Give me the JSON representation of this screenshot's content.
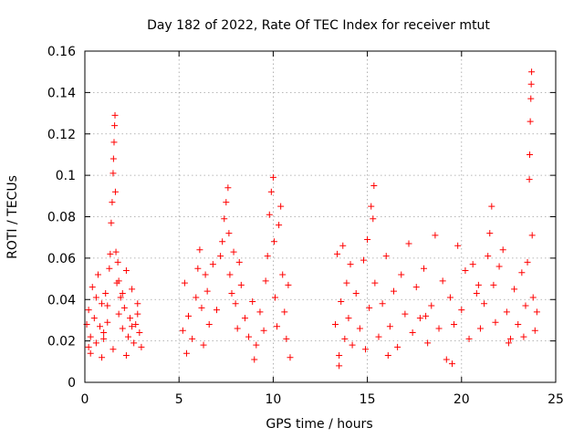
{
  "chart_data": {
    "type": "scatter",
    "title": "Day 182 of 2022, Rate Of TEC Index for receiver mtut",
    "xlabel": "GPS time / hours",
    "ylabel": "ROTI / TECUs",
    "xlim": [
      0,
      25
    ],
    "ylim": [
      0,
      0.16
    ],
    "x_ticks": [
      "0",
      "5",
      "10",
      "15",
      "20",
      "25"
    ],
    "y_ticks": [
      "0",
      "0.02",
      "0.04",
      "0.06",
      "0.08",
      "0.1",
      "0.12",
      "0.14",
      "0.16"
    ],
    "grid": true,
    "marker": "plus",
    "color": "#ff0000",
    "series": [
      {
        "points": [
          [
            0.1,
            0.028
          ],
          [
            0.2,
            0.035
          ],
          [
            0.3,
            0.022
          ],
          [
            0.4,
            0.046
          ],
          [
            0.5,
            0.031
          ],
          [
            0.6,
            0.019
          ],
          [
            0.7,
            0.052
          ],
          [
            0.8,
            0.027
          ],
          [
            0.9,
            0.038
          ],
          [
            1.0,
            0.024
          ],
          [
            1.1,
            0.043
          ],
          [
            1.2,
            0.029
          ],
          [
            1.3,
            0.055
          ],
          [
            1.35,
            0.062
          ],
          [
            1.4,
            0.077
          ],
          [
            1.45,
            0.087
          ],
          [
            1.5,
            0.101
          ],
          [
            1.52,
            0.108
          ],
          [
            1.55,
            0.116
          ],
          [
            1.58,
            0.124
          ],
          [
            1.6,
            0.129
          ],
          [
            1.62,
            0.092
          ],
          [
            1.65,
            0.063
          ],
          [
            1.7,
            0.048
          ],
          [
            1.75,
            0.058
          ],
          [
            1.8,
            0.033
          ],
          [
            1.9,
            0.041
          ],
          [
            2.0,
            0.026
          ],
          [
            2.1,
            0.036
          ],
          [
            2.2,
            0.054
          ],
          [
            2.3,
            0.022
          ],
          [
            2.4,
            0.031
          ],
          [
            2.5,
            0.045
          ],
          [
            2.6,
            0.019
          ],
          [
            2.7,
            0.028
          ],
          [
            2.8,
            0.038
          ],
          [
            2.9,
            0.024
          ],
          [
            3.0,
            0.017
          ],
          [
            0.3,
            0.014
          ],
          [
            0.9,
            0.012
          ],
          [
            1.5,
            0.016
          ],
          [
            2.2,
            0.013
          ],
          [
            2.8,
            0.033
          ],
          [
            0.6,
            0.041
          ],
          [
            1.2,
            0.037
          ],
          [
            1.8,
            0.049
          ],
          [
            2.5,
            0.027
          ],
          [
            0.2,
            0.017
          ],
          [
            1.0,
            0.021
          ],
          [
            2.0,
            0.043
          ],
          [
            5.2,
            0.025
          ],
          [
            5.3,
            0.048
          ],
          [
            5.5,
            0.032
          ],
          [
            5.7,
            0.021
          ],
          [
            5.9,
            0.041
          ],
          [
            6.0,
            0.055
          ],
          [
            6.1,
            0.064
          ],
          [
            6.2,
            0.036
          ],
          [
            6.3,
            0.018
          ],
          [
            6.5,
            0.044
          ],
          [
            6.6,
            0.028
          ],
          [
            6.8,
            0.057
          ],
          [
            7.0,
            0.035
          ],
          [
            7.2,
            0.061
          ],
          [
            7.3,
            0.068
          ],
          [
            7.4,
            0.079
          ],
          [
            7.5,
            0.087
          ],
          [
            7.6,
            0.094
          ],
          [
            7.65,
            0.072
          ],
          [
            7.7,
            0.052
          ],
          [
            7.8,
            0.043
          ],
          [
            7.9,
            0.063
          ],
          [
            8.0,
            0.038
          ],
          [
            8.1,
            0.026
          ],
          [
            8.3,
            0.047
          ],
          [
            8.5,
            0.031
          ],
          [
            8.7,
            0.022
          ],
          [
            8.9,
            0.039
          ],
          [
            9.1,
            0.018
          ],
          [
            9.3,
            0.034
          ],
          [
            9.5,
            0.025
          ],
          [
            9.6,
            0.049
          ],
          [
            9.7,
            0.061
          ],
          [
            9.8,
            0.081
          ],
          [
            9.9,
            0.092
          ],
          [
            10.0,
            0.099
          ],
          [
            10.05,
            0.068
          ],
          [
            10.1,
            0.041
          ],
          [
            10.2,
            0.027
          ],
          [
            10.3,
            0.076
          ],
          [
            10.4,
            0.085
          ],
          [
            10.5,
            0.052
          ],
          [
            10.6,
            0.034
          ],
          [
            10.7,
            0.021
          ],
          [
            10.8,
            0.047
          ],
          [
            10.9,
            0.012
          ],
          [
            5.4,
            0.014
          ],
          [
            6.4,
            0.052
          ],
          [
            8.2,
            0.058
          ],
          [
            9.0,
            0.011
          ],
          [
            13.3,
            0.028
          ],
          [
            13.4,
            0.062
          ],
          [
            13.5,
            0.013
          ],
          [
            13.6,
            0.039
          ],
          [
            13.7,
            0.066
          ],
          [
            13.8,
            0.021
          ],
          [
            13.9,
            0.048
          ],
          [
            14.0,
            0.031
          ],
          [
            14.1,
            0.057
          ],
          [
            14.2,
            0.018
          ],
          [
            14.4,
            0.043
          ],
          [
            14.6,
            0.026
          ],
          [
            14.8,
            0.059
          ],
          [
            15.0,
            0.069
          ],
          [
            15.1,
            0.036
          ],
          [
            15.2,
            0.085
          ],
          [
            15.3,
            0.079
          ],
          [
            15.35,
            0.095
          ],
          [
            15.4,
            0.048
          ],
          [
            15.6,
            0.022
          ],
          [
            15.8,
            0.038
          ],
          [
            16.0,
            0.061
          ],
          [
            16.2,
            0.027
          ],
          [
            16.4,
            0.044
          ],
          [
            16.6,
            0.017
          ],
          [
            16.8,
            0.052
          ],
          [
            17.0,
            0.033
          ],
          [
            17.2,
            0.067
          ],
          [
            17.4,
            0.024
          ],
          [
            17.6,
            0.046
          ],
          [
            17.8,
            0.031
          ],
          [
            18.0,
            0.055
          ],
          [
            18.2,
            0.019
          ],
          [
            18.4,
            0.037
          ],
          [
            18.6,
            0.071
          ],
          [
            18.8,
            0.026
          ],
          [
            19.0,
            0.049
          ],
          [
            19.2,
            0.011
          ],
          [
            19.4,
            0.041
          ],
          [
            19.6,
            0.028
          ],
          [
            19.8,
            0.066
          ],
          [
            20.0,
            0.035
          ],
          [
            20.2,
            0.054
          ],
          [
            20.4,
            0.021
          ],
          [
            20.6,
            0.057
          ],
          [
            20.8,
            0.043
          ],
          [
            21.0,
            0.026
          ],
          [
            21.2,
            0.038
          ],
          [
            21.4,
            0.061
          ],
          [
            21.5,
            0.072
          ],
          [
            21.6,
            0.085
          ],
          [
            21.7,
            0.047
          ],
          [
            21.8,
            0.029
          ],
          [
            22.0,
            0.056
          ],
          [
            22.2,
            0.064
          ],
          [
            22.4,
            0.034
          ],
          [
            22.6,
            0.021
          ],
          [
            22.8,
            0.045
          ],
          [
            23.0,
            0.028
          ],
          [
            23.2,
            0.053
          ],
          [
            23.4,
            0.037
          ],
          [
            23.5,
            0.058
          ],
          [
            23.6,
            0.098
          ],
          [
            23.62,
            0.11
          ],
          [
            23.65,
            0.126
          ],
          [
            23.68,
            0.137
          ],
          [
            23.7,
            0.144
          ],
          [
            23.72,
            0.15
          ],
          [
            23.75,
            0.071
          ],
          [
            23.8,
            0.041
          ],
          [
            23.9,
            0.025
          ],
          [
            24.0,
            0.034
          ],
          [
            13.5,
            0.008
          ],
          [
            16.1,
            0.013
          ],
          [
            19.5,
            0.009
          ],
          [
            22.5,
            0.019
          ],
          [
            14.9,
            0.016
          ],
          [
            18.1,
            0.032
          ],
          [
            20.9,
            0.047
          ],
          [
            23.3,
            0.022
          ]
        ]
      }
    ]
  }
}
